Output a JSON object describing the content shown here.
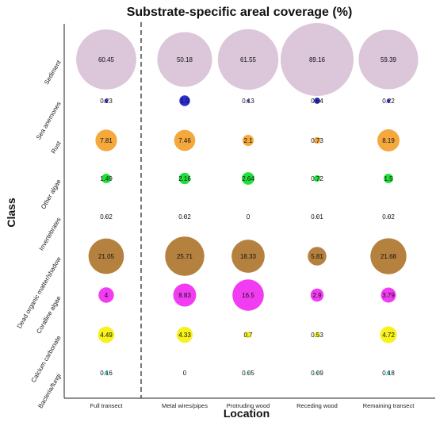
{
  "chart_data": {
    "type": "bubble",
    "title": "Substrate-specific areal coverage (%)",
    "xlabel": "Location",
    "ylabel": "Class",
    "x": [
      "Full transect",
      "Metal wires/pipes",
      "Protruding wood",
      "Receding wood",
      "Remaining transect"
    ],
    "y": [
      "Sediment",
      "Sea anemones",
      "Rust",
      "Other algae",
      "Invertebrates",
      "Dead organic matter/shadow",
      "Coralline algae",
      "Calcium carbonate",
      "Bacteria/fungi"
    ],
    "values": [
      [
        "60.45",
        "50.18",
        "61.55",
        "89.16",
        "59.39"
      ],
      [
        "0.23",
        "1.9",
        "0.13",
        "0.64",
        "0.22"
      ],
      [
        "7.81",
        "7.46",
        "2.1",
        "0.73",
        "8.19"
      ],
      [
        "1.49",
        "2.16",
        "2.64",
        "0.72",
        "1.5"
      ],
      [
        "0.02",
        "0.02",
        "0",
        "0.01",
        "0.02"
      ],
      [
        "21.05",
        "25.71",
        "18.33",
        "5.81",
        "21.68"
      ],
      [
        "4",
        "8.83",
        "16.5",
        "2.9",
        "3.79"
      ],
      [
        "4.49",
        "4.33",
        "0.7",
        "0.53",
        "4.72"
      ],
      [
        "0.16",
        "0",
        "0.05",
        "0.09",
        "0.18"
      ]
    ],
    "colors": [
      "#dcc6da",
      "#2d2dd2",
      "#f5a83c",
      "#22e03c",
      "#999999",
      "#b5813e",
      "#f23cf2",
      "#f7f21e",
      "#1fd6d6"
    ],
    "grid": false,
    "legend": "none",
    "separator": "dashed line after Full transect"
  }
}
